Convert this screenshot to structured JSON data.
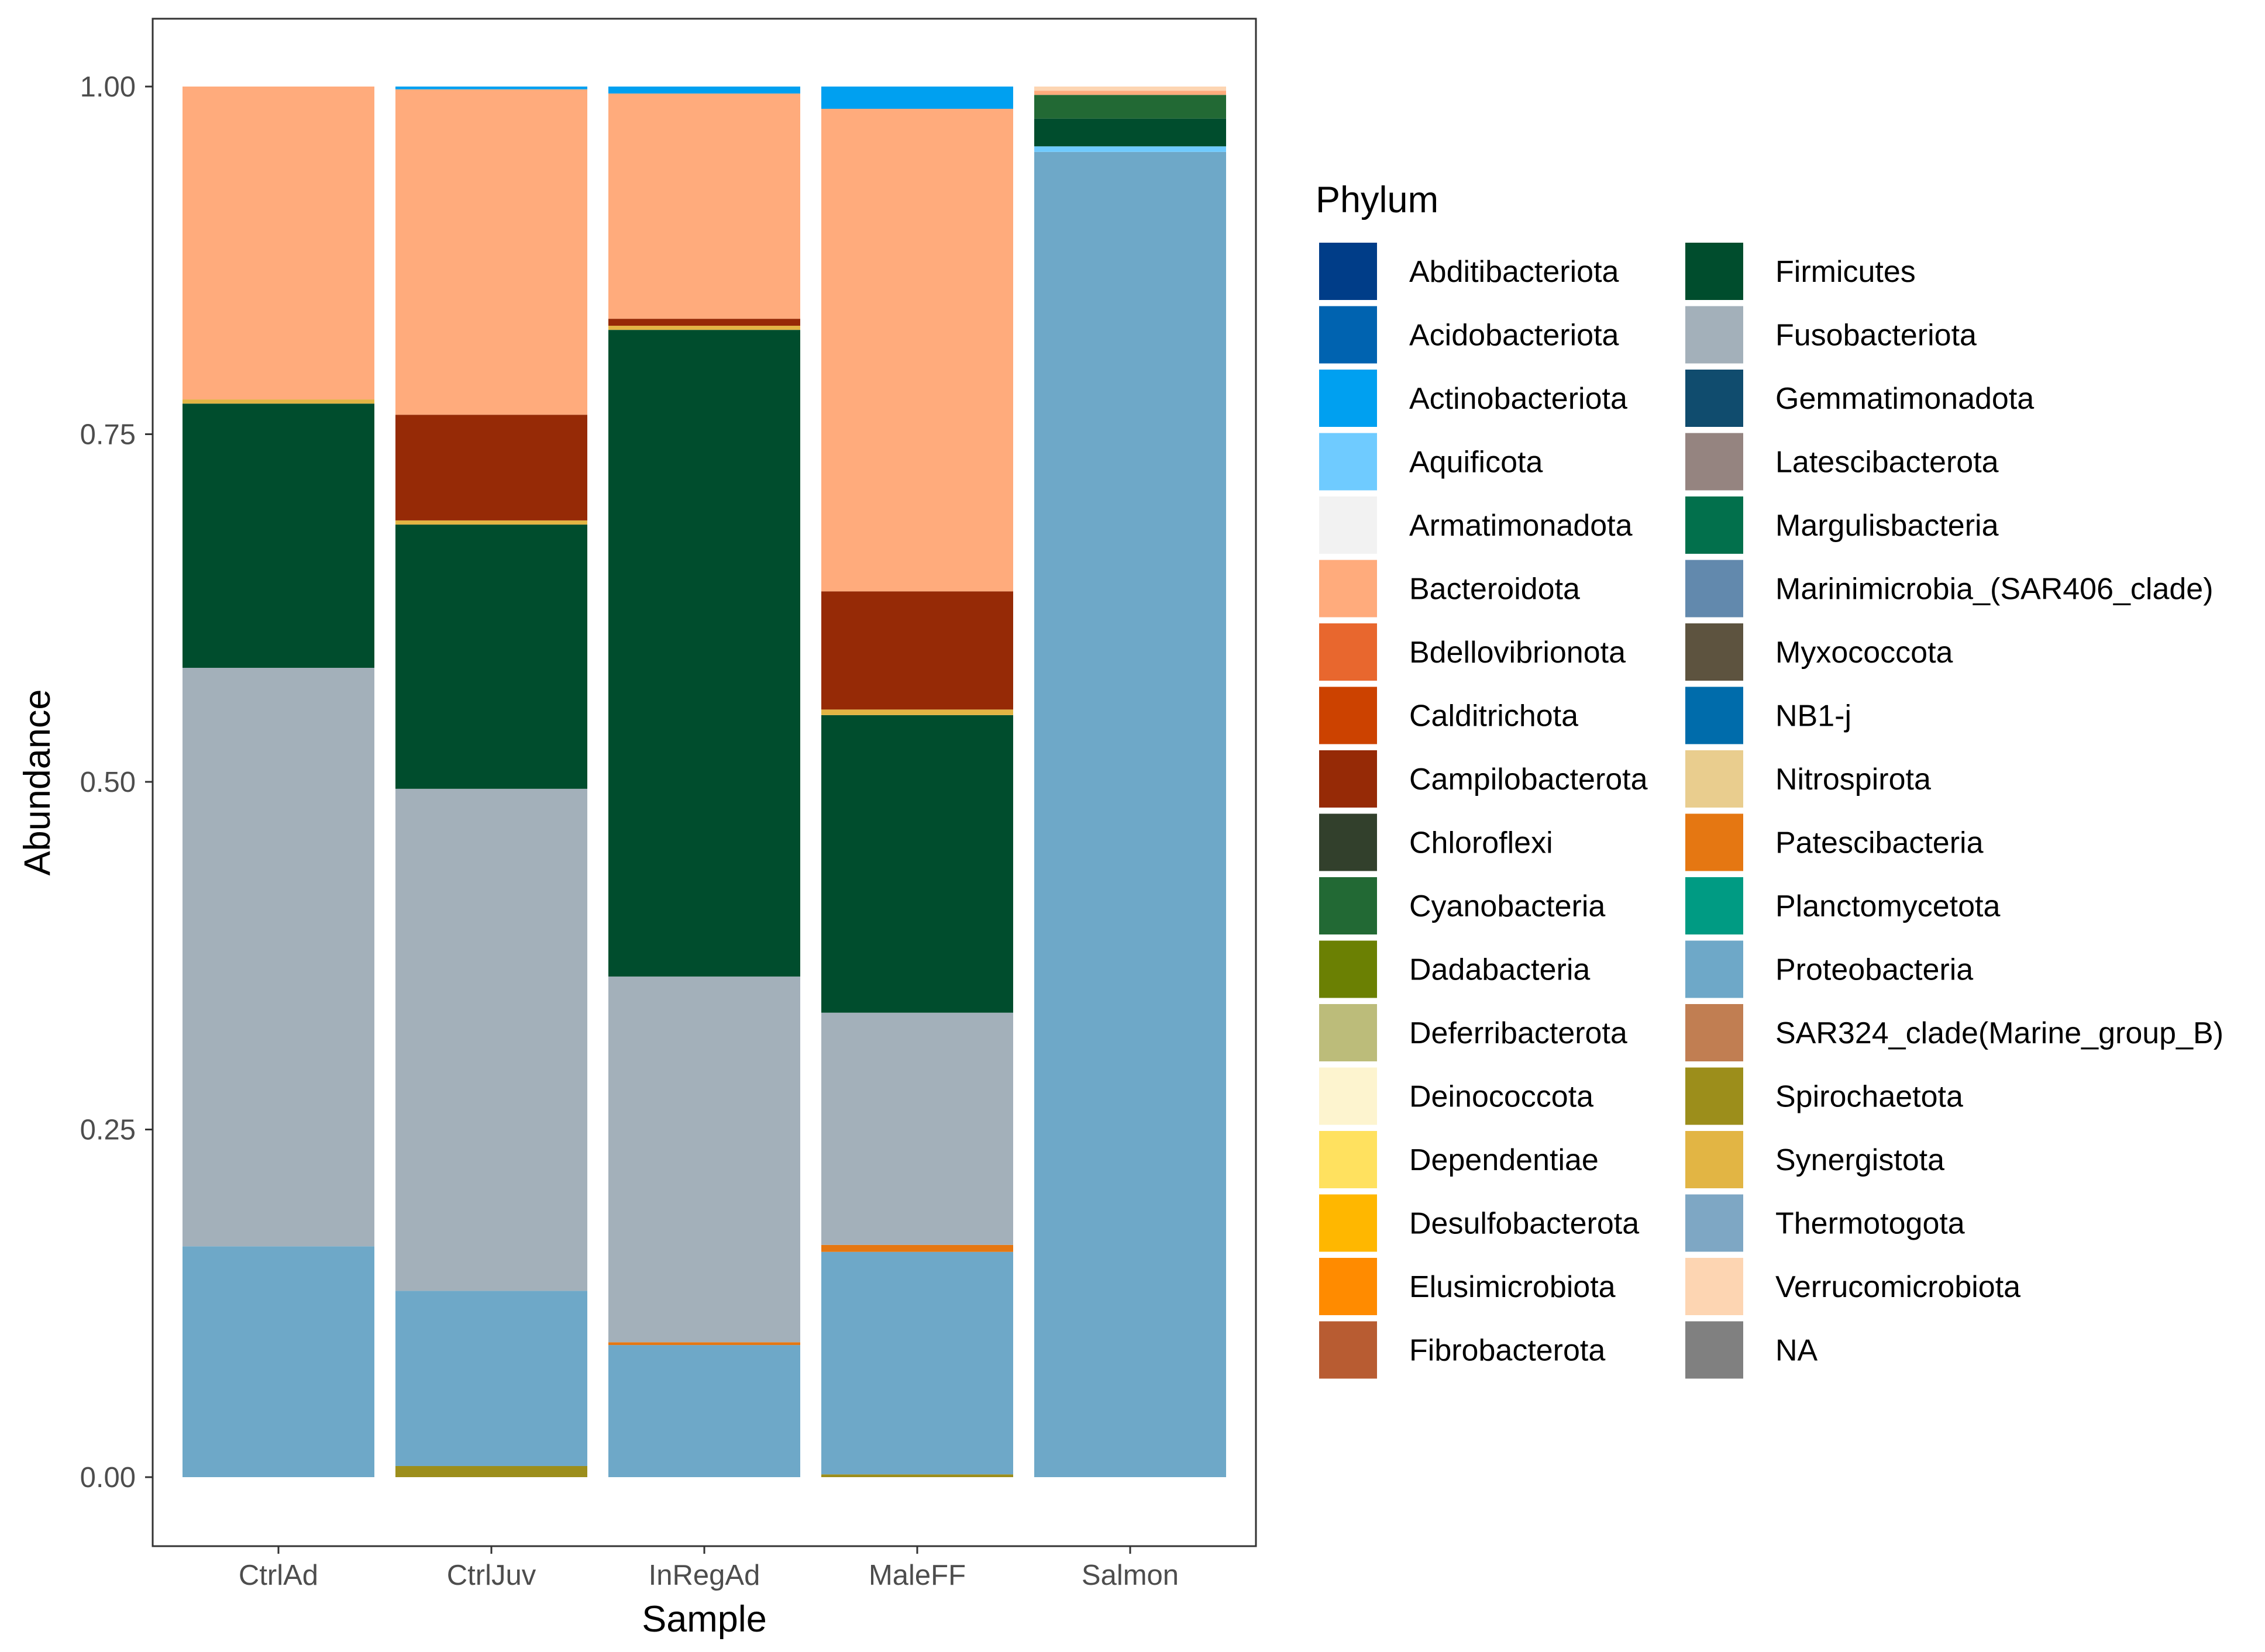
{
  "chart_data": {
    "type": "bar",
    "stacked": true,
    "title": "",
    "xlabel": "Sample",
    "ylabel": "Abundance",
    "ylim": [
      0,
      1
    ],
    "yticks": [
      "0.00",
      "0.25",
      "0.50",
      "0.75",
      "1.00"
    ],
    "categories": [
      "CtrlAd",
      "CtrlJuv",
      "InRegAd",
      "MaleFF",
      "Salmon"
    ],
    "legend": {
      "title": "Phylum",
      "position": "right",
      "entries": [
        {
          "name": "Abditibacteriota",
          "color": "#003d88"
        },
        {
          "name": "Acidobacteriota",
          "color": "#0063b0"
        },
        {
          "name": "Actinobacteriota",
          "color": "#00a0f0"
        },
        {
          "name": "Aquificota",
          "color": "#6fcbff"
        },
        {
          "name": "Armatimonadota",
          "color": "#f2f2f2"
        },
        {
          "name": "Bacteroidota",
          "color": "#ffab7c"
        },
        {
          "name": "Bdellovibrionota",
          "color": "#e8672e"
        },
        {
          "name": "Calditrichota",
          "color": "#cc4200"
        },
        {
          "name": "Campilobacterota",
          "color": "#962a06"
        },
        {
          "name": "Chloroflexi",
          "color": "#32402c"
        },
        {
          "name": "Cyanobacteria",
          "color": "#226934"
        },
        {
          "name": "Dadabacteria",
          "color": "#6b8003"
        },
        {
          "name": "Deferribacterota",
          "color": "#bcbc7a"
        },
        {
          "name": "Deinococcota",
          "color": "#fdf4cf"
        },
        {
          "name": "Dependentiae",
          "color": "#ffe15f"
        },
        {
          "name": "Desulfobacterota",
          "color": "#ffb700"
        },
        {
          "name": "Elusimicrobiota",
          "color": "#ff8b00"
        },
        {
          "name": "Fibrobacterota",
          "color": "#b85c32"
        },
        {
          "name": "Firmicutes",
          "color": "#004d2d"
        },
        {
          "name": "Fusobacteriota",
          "color": "#a3b0ba"
        },
        {
          "name": "Gemmatimonadota",
          "color": "#104c6e"
        },
        {
          "name": "Latescibacterota",
          "color": "#958480"
        },
        {
          "name": "Margulisbacteria",
          "color": "#02704c"
        },
        {
          "name": "Marinimicrobia_(SAR406_clade)",
          "color": "#6289ad"
        },
        {
          "name": "Myxococcota",
          "color": "#5d533f"
        },
        {
          "name": "NB1-j",
          "color": "#006cab"
        },
        {
          "name": "Nitrospirota",
          "color": "#e9cd8e"
        },
        {
          "name": "Patescibacteria",
          "color": "#e57712"
        },
        {
          "name": "Planctomycetota",
          "color": "#009b83"
        },
        {
          "name": "Proteobacteria",
          "color": "#6ea8c8"
        },
        {
          "name": "SAR324_clade(Marine_group_B)",
          "color": "#c17e52"
        },
        {
          "name": "Spirochaetota",
          "color": "#9c8e1b"
        },
        {
          "name": "Synergistota",
          "color": "#e2b544"
        },
        {
          "name": "Thermotogota",
          "color": "#7ea7c4"
        },
        {
          "name": "Verrucomicrobiota",
          "color": "#fdd5b2"
        },
        {
          "name": "NA",
          "color": "#808080"
        }
      ]
    },
    "series": [
      {
        "name": "Spirochaetota",
        "values": [
          0,
          0.008,
          0,
          0.002,
          0
        ]
      },
      {
        "name": "Proteobacteria",
        "values": [
          0.166,
          0.126,
          0.095,
          0.16,
          0.953
        ]
      },
      {
        "name": "Patescibacteria",
        "values": [
          0,
          0,
          0.002,
          0.005,
          0
        ]
      },
      {
        "name": "Fusobacteriota",
        "values": [
          0.416,
          0.361,
          0.263,
          0.167,
          0
        ]
      },
      {
        "name": "Aquificota",
        "values": [
          0,
          0,
          0,
          0,
          0.004
        ]
      },
      {
        "name": "Firmicutes",
        "values": [
          0.19,
          0.19,
          0.465,
          0.214,
          0.02
        ]
      },
      {
        "name": "Cyanobacteria",
        "values": [
          0,
          0,
          0,
          0,
          0.017
        ]
      },
      {
        "name": "Synergistota",
        "values": [
          0.003,
          0.003,
          0.003,
          0.004,
          0
        ]
      },
      {
        "name": "Campilobacterota",
        "values": [
          0,
          0.076,
          0.005,
          0.085,
          0
        ]
      },
      {
        "name": "Bacteroidota",
        "values": [
          0.225,
          0.234,
          0.162,
          0.347,
          0.003
        ]
      },
      {
        "name": "Actinobacteriota",
        "values": [
          0,
          0.002,
          0.005,
          0.016,
          0
        ]
      },
      {
        "name": "Verrucomicrobiota",
        "values": [
          0,
          0,
          0,
          0,
          0.003
        ]
      }
    ]
  }
}
